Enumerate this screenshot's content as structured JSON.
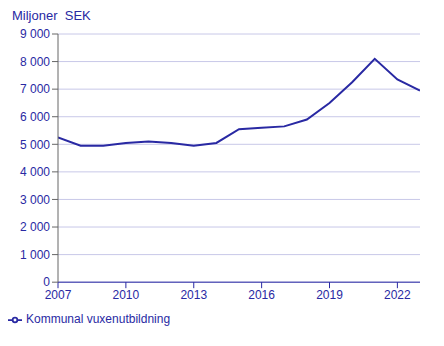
{
  "chart_data": {
    "type": "line",
    "ylabel": "Miljoner  SEK",
    "x": [
      2007,
      2008,
      2009,
      2010,
      2011,
      2012,
      2013,
      2014,
      2015,
      2016,
      2017,
      2018,
      2019,
      2020,
      2021,
      2022,
      2023
    ],
    "series": [
      {
        "name": "Kommunal vuxenutbildning",
        "color": "#2929a3",
        "values": [
          5250,
          4950,
          4950,
          5050,
          5100,
          5050,
          4950,
          5050,
          5550,
          5600,
          5650,
          5900,
          6500,
          7250,
          8100,
          7350,
          6950
        ]
      }
    ],
    "xlim": [
      2007,
      2023
    ],
    "xticks": [
      2007,
      2010,
      2013,
      2016,
      2019,
      2022
    ],
    "ylim": [
      0,
      9000
    ],
    "yticks": [
      0,
      {
        "value": 1000,
        "label": "1 000"
      },
      {
        "value": 2000,
        "label": "2 000"
      },
      {
        "value": 3000,
        "label": "3 000"
      },
      {
        "value": 4000,
        "label": "4 000"
      },
      {
        "value": 5000,
        "label": "5 000"
      },
      {
        "value": 6000,
        "label": "6 000"
      },
      {
        "value": 7000,
        "label": "7 000"
      },
      {
        "value": 8000,
        "label": "8 000"
      },
      {
        "value": 9000,
        "label": "9 000"
      }
    ],
    "grid": true,
    "legend": "bottom"
  }
}
